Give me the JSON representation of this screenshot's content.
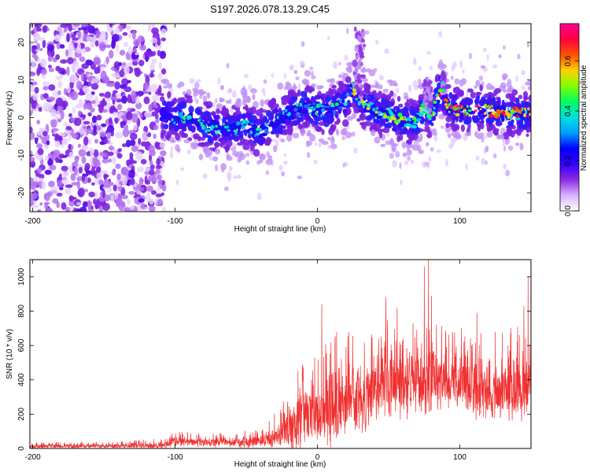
{
  "title": "S197.2026.078.13.29.C45",
  "chart_data": [
    {
      "type": "heatmap",
      "name": "spectrogram",
      "xlabel": "Height of straight line (km)",
      "ylabel": "Frequency (Hz)",
      "xlim": [
        -202,
        150
      ],
      "ylim": [
        -25,
        25
      ],
      "xticks": [
        -200,
        -100,
        0,
        100
      ],
      "yticks": [
        20,
        10,
        0,
        -10,
        -20
      ],
      "colorbar": {
        "label": "Normalized spectral amplitude",
        "range": [
          0.0,
          0.75
        ],
        "ticks": [
          0.0,
          0.2,
          0.4,
          0.6
        ],
        "colors": [
          "#ffffff",
          "#d9b3ff",
          "#8a2be2",
          "#3300ff",
          "#0000ff",
          "#00a0ff",
          "#00e0e0",
          "#00ff60",
          "#80ff00",
          "#ffd000",
          "#ff5000",
          "#ff0040",
          "#ff0090"
        ]
      },
      "ridge": {
        "x": [
          -110,
          -100,
          -90,
          -80,
          -70,
          -60,
          -50,
          -40,
          -30,
          -20,
          -10,
          0,
          10,
          20,
          25,
          30,
          35,
          40,
          45,
          50,
          60,
          70,
          75,
          80,
          85,
          88,
          90,
          95,
          100,
          110,
          120,
          130,
          140,
          150
        ],
        "y": [
          1,
          0,
          0,
          -2,
          -3,
          -3,
          -2,
          -4,
          -1,
          1,
          3,
          2,
          2,
          4,
          8,
          4,
          3,
          2,
          1,
          1,
          -1,
          -1,
          3,
          0,
          6,
          8,
          4,
          2,
          2,
          2,
          2,
          1,
          1,
          1
        ]
      }
    },
    {
      "type": "line",
      "name": "snr",
      "xlabel": "Height of straight line (km)",
      "ylabel": "SNR (10 * v/v)",
      "xlim": [
        -202,
        150
      ],
      "ylim": [
        0,
        1100
      ],
      "xticks": [
        -200,
        -100,
        0,
        100
      ],
      "yticks": [
        0,
        200,
        400,
        600,
        800,
        1000
      ],
      "color": "#f03030",
      "envelope": {
        "x": [
          -202,
          -150,
          -110,
          -100,
          -90,
          -80,
          -60,
          -40,
          -30,
          -20,
          -10,
          0,
          10,
          20,
          30,
          40,
          50,
          60,
          70,
          80,
          90,
          100,
          110,
          120,
          130,
          140,
          150
        ],
        "mean": [
          10,
          15,
          15,
          40,
          40,
          35,
          35,
          40,
          70,
          120,
          170,
          200,
          240,
          280,
          300,
          360,
          380,
          360,
          370,
          370,
          380,
          380,
          350,
          330,
          330,
          340,
          350
        ],
        "amp": [
          15,
          15,
          25,
          35,
          35,
          30,
          35,
          45,
          80,
          150,
          200,
          230,
          250,
          250,
          240,
          200,
          220,
          220,
          220,
          220,
          200,
          200,
          200,
          200,
          220,
          220,
          200
        ]
      },
      "peaks": [
        {
          "x": -107,
          "y": 55
        },
        {
          "x": 3,
          "y": 840
        },
        {
          "x": 22,
          "y": 680
        },
        {
          "x": 48,
          "y": 880
        },
        {
          "x": 56,
          "y": 820
        },
        {
          "x": 75,
          "y": 1060
        },
        {
          "x": 78,
          "y": 1100
        },
        {
          "x": 80,
          "y": 890
        },
        {
          "x": 112,
          "y": 790
        },
        {
          "x": 145,
          "y": 830
        },
        {
          "x": 148,
          "y": 1000
        }
      ]
    }
  ]
}
